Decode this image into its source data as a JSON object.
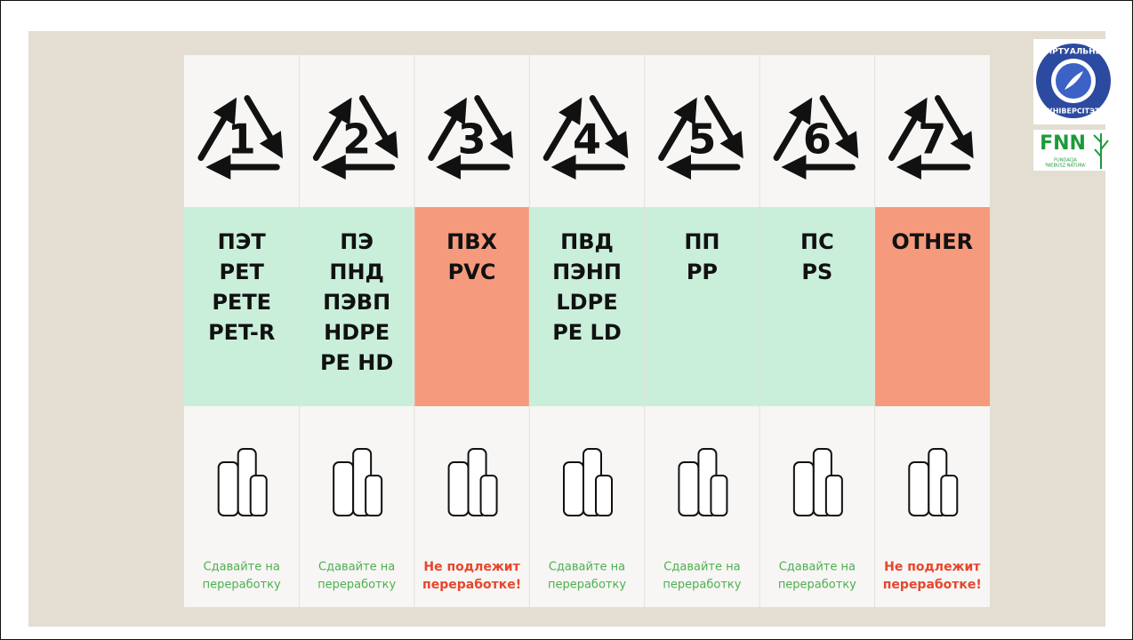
{
  "columns": [
    {
      "number": "1",
      "codes": [
        "ПЭТ",
        "PET",
        "PETE",
        "PET-R"
      ],
      "note": [
        "Сдавайте на",
        "переработку"
      ],
      "color": "#c9efdb",
      "note_color": "#4caf50"
    },
    {
      "number": "2",
      "codes": [
        "ПЭ",
        "ПНД",
        "ПЭВП",
        "HDPE",
        "PE HD"
      ],
      "note": [
        "Сдавайте на",
        "переработку"
      ],
      "color": "#c9efdb",
      "note_color": "#4caf50"
    },
    {
      "number": "3",
      "codes": [
        "ПВХ",
        "PVC"
      ],
      "note": [
        "Не подлежит",
        "переработке!"
      ],
      "color": "#f59a7d",
      "note_color": "#e8452c"
    },
    {
      "number": "4",
      "codes": [
        "ПВД",
        "ПЭНП",
        "LDPE",
        "PE LD"
      ],
      "note": [
        "Сдавайте на",
        "переработку"
      ],
      "color": "#c9efdb",
      "note_color": "#4caf50"
    },
    {
      "number": "5",
      "codes": [
        "ПП",
        "PP"
      ],
      "note": [
        "Сдавайте на",
        "переработку"
      ],
      "color": "#c9efdb",
      "note_color": "#4caf50"
    },
    {
      "number": "6",
      "codes": [
        "ПС",
        "PS"
      ],
      "note": [
        "Сдавайте на",
        "переработку"
      ],
      "color": "#c9efdb",
      "note_color": "#4caf50"
    },
    {
      "number": "7",
      "codes": [
        "OTHER"
      ],
      "note": [
        "Не подлежит",
        "переработке!"
      ],
      "color": "#f59a7d",
      "note_color": "#e8452c"
    }
  ],
  "logos": {
    "university_top": "ВІРТУАЛЬНЫ",
    "university_bottom": "УНІВЕРСІТЭТ",
    "fnn": "FNN",
    "fnn_line1": "FUNDACJA",
    "fnn_line2": "'NIEBUSZ NATURA'"
  }
}
